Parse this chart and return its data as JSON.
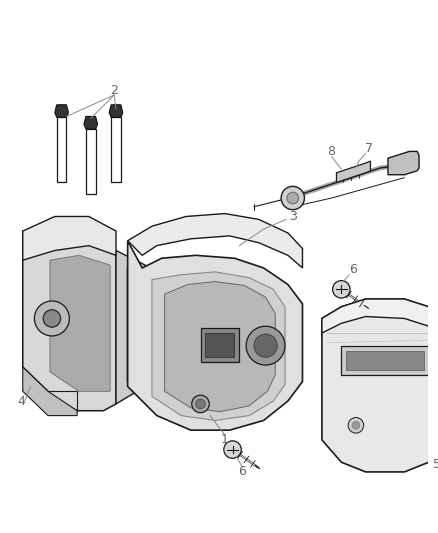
{
  "bg_color": "#ffffff",
  "line_color": "#1a1a1a",
  "label_color": "#666666",
  "leader_color": "#888888",
  "fig_width": 4.39,
  "fig_height": 5.33,
  "dpi": 100
}
